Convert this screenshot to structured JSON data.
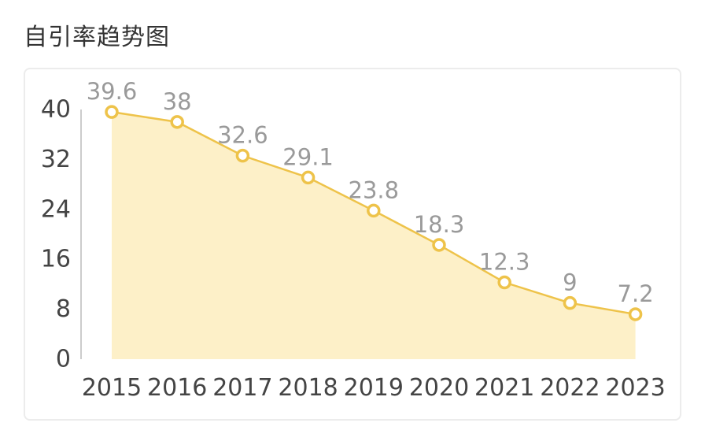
{
  "header": {
    "title": "自引率趋势图"
  },
  "colors": {
    "line": "#eec34a",
    "area": "#fdf0c8",
    "marker_fill": "#ffffff",
    "axis": "#cccccc"
  },
  "chart_data": {
    "type": "area",
    "title": "自引率趋势图",
    "categories": [
      "2015",
      "2016",
      "2017",
      "2018",
      "2019",
      "2020",
      "2021",
      "2022",
      "2023"
    ],
    "values": [
      39.6,
      38,
      32.6,
      29.1,
      23.8,
      18.3,
      12.3,
      9,
      7.2
    ],
    "data_labels": [
      "39.6",
      "38",
      "32.6",
      "29.1",
      "23.8",
      "18.3",
      "12.3",
      "9",
      "7.2"
    ],
    "y_ticks": [
      0,
      8,
      16,
      24,
      32,
      40
    ],
    "ylim": [
      0,
      40
    ],
    "grid": false,
    "legend": "none"
  }
}
